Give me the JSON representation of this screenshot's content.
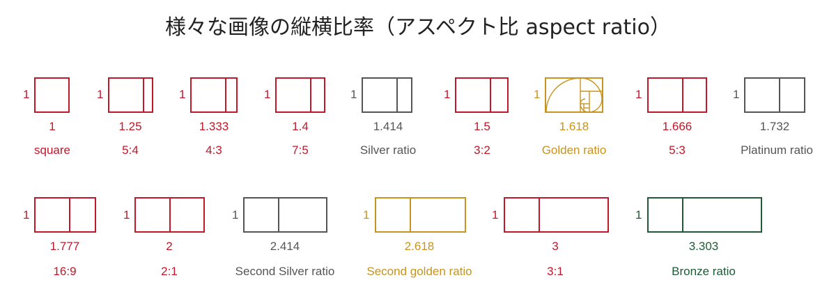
{
  "title": "様々な画像の縦横比率（アスペクト比 aspect ratio）",
  "colors": {
    "red": "#c0172a",
    "gray": "#555555",
    "gold": "#c8931e",
    "green": "#1f5a34"
  },
  "row1": [
    {
      "one": "1",
      "value": "1",
      "label": "square",
      "color": "red"
    },
    {
      "one": "1",
      "value": "1.25",
      "label": "5:4",
      "color": "red"
    },
    {
      "one": "1",
      "value": "1.333",
      "label": "4:3",
      "color": "red"
    },
    {
      "one": "1",
      "value": "1.4",
      "label": "7:5",
      "color": "red"
    },
    {
      "one": "1",
      "value": "1.414",
      "label": "Silver ratio",
      "color": "gray"
    },
    {
      "one": "1",
      "value": "1.5",
      "label": "3:2",
      "color": "red"
    },
    {
      "one": "1",
      "value": "1.618",
      "label": "Golden ratio",
      "color": "gold"
    },
    {
      "one": "1",
      "value": "1.666",
      "label": "5:3",
      "color": "red"
    },
    {
      "one": "1",
      "value": "1.732",
      "label": "Platinum ratio",
      "color": "gray"
    }
  ],
  "row2": [
    {
      "one": "1",
      "value": "1.777",
      "label": "16:9",
      "color": "red"
    },
    {
      "one": "1",
      "value": "2",
      "label": "2:1",
      "color": "red"
    },
    {
      "one": "1",
      "value": "2.414",
      "label": "Second Silver ratio",
      "color": "gray"
    },
    {
      "one": "1",
      "value": "2.618",
      "label": "Second golden ratio",
      "color": "gold"
    },
    {
      "one": "1",
      "value": "3",
      "label": "3:1",
      "color": "red"
    },
    {
      "one": "1",
      "value": "3.303",
      "label": "Bronze ratio",
      "color": "green"
    }
  ]
}
